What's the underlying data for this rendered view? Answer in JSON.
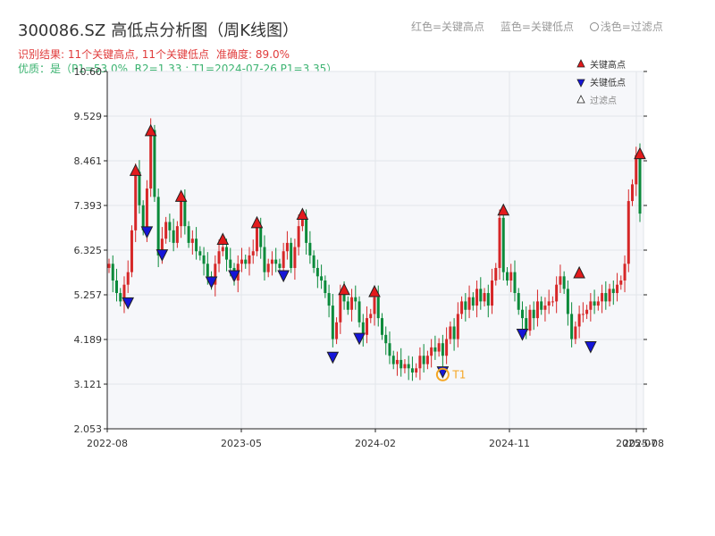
{
  "header": {
    "code": "300086.SZ",
    "title": "高低点分析图（周K线图）",
    "result_label": "识别结果: 11个关键高点, 11个关键低点",
    "accuracy_label": "准确度: 89.0%",
    "quality_line": "优质：是（P1=53.0%, R2=1.33 ; T1=2024-07-26 P1=3.35）",
    "legend_red": "红色=关键高点",
    "legend_blue": "蓝色=关键低点",
    "legend_filter": "浅色=过滤点"
  },
  "colors": {
    "up": "#d62728",
    "down": "#0a8a3a",
    "high_marker": "#e31a1c",
    "low_marker": "#1515d8",
    "t1": "#f5a623"
  },
  "chart_data": {
    "type": "candlestick",
    "y_ticks": [
      "10.60",
      "9.529",
      "8.461",
      "7.393",
      "6.325",
      "5.257",
      "4.189",
      "3.121",
      "2.053"
    ],
    "ylim": [
      2.053,
      10.6
    ],
    "x_ticks": [
      "2022-08",
      "2023-05",
      "2024-02",
      "2024-11",
      "2025-07",
      "2025-08"
    ],
    "legend": [
      "关键高点",
      "关键低点",
      "过滤点"
    ],
    "t1_label": "T1",
    "closes": [
      6.0,
      5.6,
      5.3,
      5.1,
      5.5,
      5.8,
      6.8,
      8.2,
      7.4,
      6.8,
      7.8,
      9.2,
      7.6,
      6.2,
      6.6,
      7.0,
      6.8,
      6.5,
      6.9,
      7.5,
      6.9,
      6.5,
      6.6,
      6.3,
      6.2,
      6.0,
      5.7,
      5.5,
      6.0,
      6.3,
      6.4,
      6.1,
      5.9,
      5.6,
      6.0,
      6.1,
      6.0,
      6.2,
      6.3,
      6.9,
      6.4,
      5.8,
      6.0,
      6.1,
      6.0,
      5.9,
      6.3,
      6.5,
      5.9,
      6.4,
      6.9,
      7.1,
      6.5,
      6.2,
      5.9,
      5.7,
      5.6,
      5.3,
      5.0,
      4.2,
      4.6,
      5.3,
      5.1,
      4.9,
      5.2,
      5.1,
      4.6,
      4.3,
      4.7,
      4.8,
      5.2,
      4.7,
      4.3,
      4.1,
      3.8,
      3.6,
      3.7,
      3.5,
      3.6,
      3.5,
      3.4,
      3.5,
      3.8,
      3.6,
      3.8,
      4.0,
      3.9,
      4.1,
      3.8,
      4.2,
      4.5,
      4.2,
      4.8,
      5.1,
      4.9,
      5.2,
      5.0,
      5.4,
      5.1,
      5.3,
      5.0,
      5.6,
      5.9,
      7.1,
      5.8,
      5.6,
      5.8,
      5.3,
      4.9,
      4.7,
      4.4,
      4.9,
      4.7,
      5.1,
      4.9,
      5.0,
      5.1,
      5.1,
      5.5,
      5.7,
      5.4,
      4.8,
      4.2,
      4.5,
      4.8,
      4.8,
      4.9,
      5.1,
      5.0,
      5.1,
      5.3,
      5.1,
      5.4,
      5.3,
      5.5,
      5.6,
      6.0,
      7.5,
      7.9,
      8.6,
      7.2
    ],
    "key_highs": [
      {
        "i": 7,
        "v": 8.2
      },
      {
        "i": 11,
        "v": 9.15
      },
      {
        "i": 19,
        "v": 7.58
      },
      {
        "i": 30,
        "v": 6.55
      },
      {
        "i": 39,
        "v": 6.95
      },
      {
        "i": 51,
        "v": 7.15
      },
      {
        "i": 62,
        "v": 5.35
      },
      {
        "i": 70,
        "v": 5.3
      },
      {
        "i": 104,
        "v": 7.25
      },
      {
        "i": 124,
        "v": 5.75
      },
      {
        "i": 140,
        "v": 8.6
      }
    ],
    "key_lows": [
      {
        "i": 5,
        "v": 5.1
      },
      {
        "i": 10,
        "v": 6.8
      },
      {
        "i": 14,
        "v": 6.25
      },
      {
        "i": 27,
        "v": 5.6
      },
      {
        "i": 33,
        "v": 5.75
      },
      {
        "i": 46,
        "v": 5.75
      },
      {
        "i": 59,
        "v": 3.8
      },
      {
        "i": 66,
        "v": 4.25
      },
      {
        "i": 88,
        "v": 3.45
      },
      {
        "i": 109,
        "v": 4.35
      },
      {
        "i": 127,
        "v": 4.05
      }
    ],
    "t1": {
      "i": 88,
      "v": 3.35
    }
  }
}
